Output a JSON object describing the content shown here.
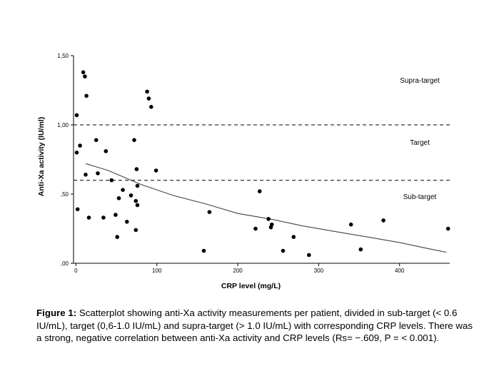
{
  "chart_data": {
    "type": "scatter",
    "xlabel": "CRP level (mg/L)",
    "ylabel": "Anti-Xa activity (IU/ml)",
    "xlim": [
      -3,
      462
    ],
    "ylim": [
      0,
      1.5
    ],
    "x_ticks": [
      0,
      100,
      200,
      300,
      400
    ],
    "x_tick_labels": [
      "0",
      "100",
      "200",
      "300",
      "400"
    ],
    "y_ticks": [
      0,
      0.5,
      1.0,
      1.5
    ],
    "y_tick_labels": [
      ",00",
      ",50",
      "1,00",
      "1,50"
    ],
    "grid": false,
    "reference_lines": [
      {
        "y": 1.0,
        "style": "dashed"
      },
      {
        "y": 0.6,
        "style": "dashed"
      }
    ],
    "zone_labels": [
      {
        "text": "Supra-target",
        "y": 1.32
      },
      {
        "text": "Target",
        "y": 0.87
      },
      {
        "text": "Sub-target",
        "y": 0.48
      }
    ],
    "points": [
      [
        1,
        1.07
      ],
      [
        2,
        0.39
      ],
      [
        1,
        0.8
      ],
      [
        5,
        0.85
      ],
      [
        9,
        1.38
      ],
      [
        11,
        1.35
      ],
      [
        13,
        1.21
      ],
      [
        12,
        0.64
      ],
      [
        16,
        0.33
      ],
      [
        25,
        0.89
      ],
      [
        27,
        0.65
      ],
      [
        34,
        0.33
      ],
      [
        37,
        0.81
      ],
      [
        44,
        0.6
      ],
      [
        49,
        0.35
      ],
      [
        51,
        0.19
      ],
      [
        53,
        0.47
      ],
      [
        58,
        0.53
      ],
      [
        63,
        0.3
      ],
      [
        68,
        0.49
      ],
      [
        72,
        0.89
      ],
      [
        74,
        0.24
      ],
      [
        75,
        0.68
      ],
      [
        74,
        0.45
      ],
      [
        76,
        0.56
      ],
      [
        76,
        0.42
      ],
      [
        88,
        1.24
      ],
      [
        90,
        1.19
      ],
      [
        93,
        1.13
      ],
      [
        99,
        0.67
      ],
      [
        158,
        0.09
      ],
      [
        165,
        0.37
      ],
      [
        222,
        0.25
      ],
      [
        227,
        0.52
      ],
      [
        238,
        0.32
      ],
      [
        241,
        0.26
      ],
      [
        242,
        0.28
      ],
      [
        256,
        0.09
      ],
      [
        269,
        0.19
      ],
      [
        288,
        0.06
      ],
      [
        340,
        0.28
      ],
      [
        352,
        0.1
      ],
      [
        380,
        0.31
      ],
      [
        460,
        0.25
      ]
    ],
    "fit_line": {
      "x": [
        12,
        40,
        80,
        120,
        160,
        200,
        240,
        280,
        320,
        360,
        400,
        440,
        458
      ],
      "y": [
        0.72,
        0.67,
        0.57,
        0.49,
        0.43,
        0.36,
        0.32,
        0.27,
        0.23,
        0.19,
        0.15,
        0.1,
        0.08
      ]
    }
  },
  "caption": {
    "label": "Figure 1:",
    "text": " Scatterplot showing anti-Xa activity measurements per patient, divided in sub-target (< 0.6 IU/mL), target (0,6-1.0 IU/mL) and supra-target (> 1.0 IU/mL) with corresponding CRP levels. There was a strong, negative correlation between anti-Xa activity and CRP levels (Rs= −.609, P = < 0.001)."
  }
}
